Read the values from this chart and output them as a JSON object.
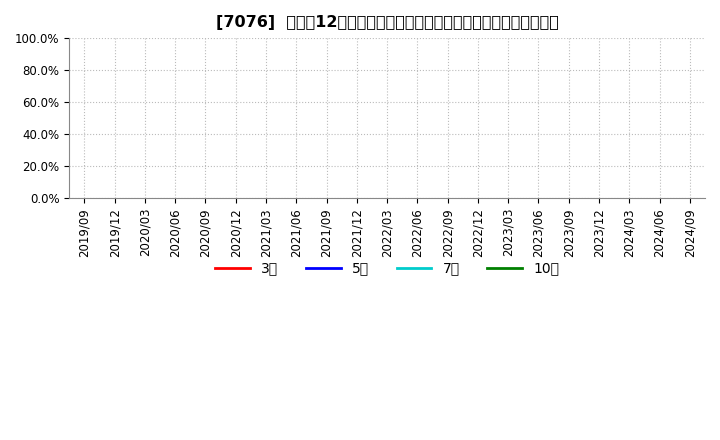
{
  "title": "[7076]  売上高12か月移動合計の対前年同期増減率の標準偏差の推移",
  "ylim": [
    0.0,
    1.0
  ],
  "yticks": [
    0.0,
    0.2,
    0.4,
    0.6,
    0.8,
    1.0
  ],
  "ytick_labels": [
    "0.0%",
    "20.0%",
    "40.0%",
    "60.0%",
    "80.0%",
    "100.0%"
  ],
  "x_labels": [
    "2019/09",
    "2019/12",
    "2020/03",
    "2020/06",
    "2020/09",
    "2020/12",
    "2021/03",
    "2021/06",
    "2021/09",
    "2021/12",
    "2022/03",
    "2022/06",
    "2022/09",
    "2022/12",
    "2023/03",
    "2023/06",
    "2023/09",
    "2023/12",
    "2024/03",
    "2024/06",
    "2024/09"
  ],
  "legend_entries": [
    {
      "label": "3年",
      "color": "#ff0000"
    },
    {
      "label": "5年",
      "color": "#0000ff"
    },
    {
      "label": "7年",
      "color": "#00cccc"
    },
    {
      "label": "10年",
      "color": "#008000"
    }
  ],
  "background_color": "#ffffff",
  "grid_color": "#bbbbbb",
  "title_fontsize": 11.5,
  "tick_fontsize": 8.5,
  "legend_fontsize": 10
}
